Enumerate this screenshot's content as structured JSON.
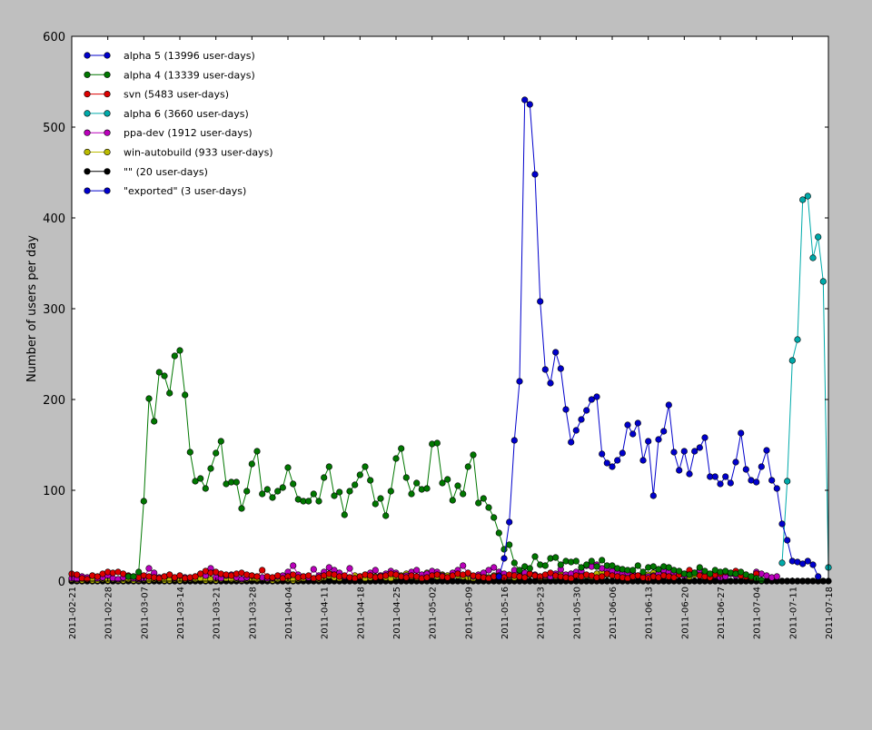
{
  "chart_data": {
    "type": "line",
    "title": "",
    "xlabel": "",
    "ylabel": "Number of users per day",
    "ylim": [
      0,
      600
    ],
    "yticks": [
      0,
      100,
      200,
      300,
      400,
      500,
      600
    ],
    "xlim": [
      "2011-02-21",
      "2011-07-18"
    ],
    "xticks": [
      "2011-02-21",
      "2011-02-28",
      "2011-03-07",
      "2011-03-14",
      "2011-03-21",
      "2011-03-28",
      "2011-04-04",
      "2011-04-11",
      "2011-04-18",
      "2011-04-25",
      "2011-05-02",
      "2011-05-09",
      "2011-05-16",
      "2011-05-23",
      "2011-05-30",
      "2011-06-06",
      "2011-06-13",
      "2011-06-20",
      "2011-06-27",
      "2011-07-04",
      "2011-07-11",
      "2011-07-18"
    ],
    "grid": false,
    "legend_position": "top-left",
    "series": [
      {
        "name": "alpha 5 (13996 user-days)",
        "color": "#0000cc",
        "start": "2011-05-15",
        "values": [
          5,
          25,
          65,
          155,
          220,
          530,
          525,
          448,
          308,
          233,
          218,
          252,
          234,
          189,
          153,
          166,
          178,
          188,
          200,
          203,
          140,
          130,
          126,
          133,
          141,
          172,
          162,
          174,
          133,
          154,
          94,
          156,
          165,
          194,
          142,
          122,
          143,
          118,
          143,
          147,
          158,
          115,
          115,
          107,
          115,
          108,
          131,
          163,
          123,
          111,
          109,
          126,
          144,
          111,
          102,
          63,
          45,
          22,
          21,
          19,
          22,
          18,
          5
        ]
      },
      {
        "name": "alpha 4 (13339 user-days)",
        "color": "#007700",
        "start": "2011-03-04",
        "values": [
          5,
          5,
          10,
          88,
          201,
          176,
          230,
          226,
          207,
          248,
          254,
          205,
          142,
          110,
          113,
          102,
          124,
          141,
          154,
          107,
          109,
          109,
          80,
          99,
          129,
          143,
          96,
          101,
          92,
          99,
          103,
          125,
          107,
          90,
          88,
          88,
          96,
          88,
          114,
          126,
          94,
          98,
          73,
          99,
          106,
          117,
          126,
          111,
          85,
          91,
          72,
          99,
          135,
          146,
          114,
          96,
          108,
          101,
          102,
          151,
          152,
          108,
          112,
          89,
          105,
          96,
          126,
          139,
          86,
          91,
          81,
          70,
          53,
          35,
          40,
          20,
          12,
          16,
          14,
          27,
          18,
          17,
          25,
          26,
          18,
          22,
          21,
          22,
          15,
          18,
          22,
          16,
          23,
          17,
          17,
          14,
          13,
          12,
          12,
          17,
          10,
          15,
          16,
          13,
          16,
          15,
          12,
          11,
          8,
          7,
          9,
          15,
          11,
          8,
          12,
          10,
          11,
          9,
          8,
          10,
          7,
          5,
          3,
          1
        ]
      },
      {
        "name": "svn (5483 user-days)",
        "color": "#dd0000",
        "start": "2011-02-21",
        "series_pattern": "svn",
        "values": [
          8,
          7,
          3,
          2,
          6,
          5,
          8,
          10,
          9,
          10,
          8,
          6,
          5,
          4,
          6,
          5,
          4,
          3,
          5,
          7,
          4,
          6,
          3,
          4,
          5,
          8,
          11,
          9,
          10,
          8,
          7,
          6,
          8,
          9,
          7,
          6,
          5,
          12,
          5,
          4,
          6,
          3,
          5,
          7,
          4,
          5,
          6,
          3,
          4,
          6,
          8,
          7,
          5,
          6,
          4,
          3,
          5,
          7,
          6,
          4,
          5,
          6,
          8,
          7,
          5,
          4,
          6,
          5,
          3,
          4,
          6,
          7,
          5,
          4,
          6,
          8,
          7,
          9,
          6,
          5,
          4,
          3,
          5,
          6,
          4,
          7,
          6,
          5,
          4,
          8,
          6,
          5,
          7,
          9,
          6,
          5,
          4,
          3,
          6,
          5,
          7,
          6,
          4,
          5,
          8,
          6,
          5,
          4,
          3,
          5,
          6,
          4,
          3,
          5,
          4,
          6,
          5,
          4,
          7,
          8,
          12,
          9,
          6,
          5,
          4,
          7,
          8,
          10,
          9,
          11,
          6,
          5,
          4,
          8
        ]
      },
      {
        "name": "alpha 6 (3660 user-days)",
        "color": "#00aaaa",
        "start": "2011-07-09",
        "values": [
          20,
          110,
          243,
          266,
          420,
          424,
          356,
          379,
          330,
          15
        ]
      },
      {
        "name": "ppa-dev (1912 user-days)",
        "color": "#bb00bb",
        "start": "2011-02-21",
        "values": [
          3,
          2,
          5,
          4,
          6,
          3,
          4,
          6,
          3,
          2,
          4,
          5,
          3,
          2,
          3,
          14,
          9,
          4,
          5,
          7,
          3,
          6,
          4,
          3,
          5,
          8,
          6,
          14,
          4,
          3,
          6,
          7,
          4,
          2,
          4,
          6,
          5,
          4,
          3,
          3,
          5,
          6,
          10,
          17,
          7,
          5,
          4,
          13,
          6,
          10,
          15,
          12,
          9,
          5,
          14,
          3,
          5,
          7,
          9,
          12,
          6,
          8,
          11,
          9,
          5,
          6,
          10,
          12,
          7,
          8,
          11,
          10,
          6,
          4,
          9,
          12,
          17,
          8,
          5,
          7,
          9,
          12,
          15,
          10,
          8,
          6,
          12,
          11,
          9,
          8,
          7,
          5,
          6,
          5,
          8,
          13,
          7,
          8,
          10,
          11,
          17,
          16,
          18,
          14,
          12,
          11,
          9,
          8,
          9,
          7,
          6,
          4,
          5,
          6,
          8,
          12,
          10,
          9,
          7,
          6,
          8,
          9,
          12,
          7,
          5,
          6,
          4,
          5,
          8,
          6,
          9,
          7,
          5,
          10,
          8,
          6,
          4,
          5
        ]
      },
      {
        "name": "win-autobuild (933 user-days)",
        "color": "#bbbb00",
        "start": "2011-02-21",
        "values": [
          2,
          1,
          1,
          2,
          1,
          1,
          2,
          1,
          2,
          1,
          1,
          2,
          1,
          1,
          2,
          1,
          2,
          2,
          1,
          1,
          2,
          1,
          2,
          2,
          2,
          3,
          1,
          2,
          1,
          2,
          3,
          2,
          2,
          1,
          2,
          3,
          2,
          3,
          2,
          1,
          2,
          3,
          2,
          1,
          2,
          3,
          4,
          3,
          2,
          4,
          6,
          4,
          3,
          5,
          4,
          6,
          5,
          3,
          4,
          5,
          6,
          4,
          3,
          5,
          6,
          8,
          5,
          4,
          6,
          9,
          8,
          5,
          7,
          6,
          8,
          6,
          5,
          4,
          3,
          5,
          7,
          4,
          6,
          5,
          7,
          5,
          4,
          6,
          5,
          7,
          6,
          4,
          5,
          6,
          5,
          7,
          6,
          8,
          9,
          7,
          6,
          5,
          8,
          10,
          7,
          9,
          8,
          6,
          7,
          8,
          6,
          5,
          7,
          9,
          8,
          6,
          7,
          9,
          8,
          6,
          5,
          7,
          8,
          9
        ]
      },
      {
        "name": "\"\" (20 user-days)",
        "color": "#000000",
        "start": "2011-02-21",
        "values": [
          0,
          0,
          0,
          0,
          0,
          0,
          0,
          0,
          0,
          0,
          0,
          0,
          0,
          0,
          0,
          0,
          0,
          0,
          0,
          0,
          0,
          0,
          0,
          0,
          0,
          0,
          0,
          0,
          0,
          0,
          0,
          0,
          0,
          0,
          0,
          0,
          0,
          0,
          0,
          0,
          0,
          0,
          0,
          0,
          0,
          0,
          0,
          0,
          0,
          0,
          0,
          0,
          0,
          0,
          0,
          0,
          0,
          0,
          0,
          0,
          0,
          0,
          0,
          0,
          0,
          0,
          0,
          0,
          0,
          0,
          0,
          0,
          0,
          0,
          0,
          0,
          0,
          0,
          0,
          0,
          0,
          0,
          0,
          0,
          0,
          0,
          0,
          0,
          0,
          0,
          0,
          0,
          0,
          0,
          0,
          0,
          0,
          0,
          0,
          0,
          0,
          0,
          0,
          0,
          0,
          0,
          0,
          0,
          0,
          0,
          0,
          0,
          0,
          0,
          0,
          0,
          0,
          0,
          0,
          0,
          0,
          0,
          0,
          0,
          0,
          0,
          0,
          0,
          0,
          0,
          0,
          0,
          0,
          0,
          0,
          0,
          0,
          0,
          0,
          0,
          0,
          0,
          0,
          0,
          0,
          0,
          0,
          0
        ]
      },
      {
        "name": "\"exported\" (3 user-days)",
        "color": "#0000cc",
        "start": "2011-02-21",
        "values": [
          0,
          0,
          0,
          0,
          0,
          0,
          0,
          0,
          0,
          0,
          0,
          0,
          0,
          0,
          0,
          0,
          0,
          0,
          0,
          0,
          0,
          0,
          0,
          0,
          0,
          0,
          0,
          0,
          0,
          0,
          0,
          0,
          0,
          0,
          0,
          0,
          0,
          0,
          0,
          0,
          0,
          0,
          0,
          0,
          0,
          0,
          0,
          0,
          0,
          0,
          0,
          0,
          0,
          0,
          0,
          0,
          0,
          0,
          0,
          0,
          0,
          0,
          0,
          0,
          0,
          0,
          0,
          0,
          0,
          0,
          0,
          0,
          0,
          0,
          0,
          0,
          0,
          0,
          0,
          0,
          0,
          0,
          0,
          0,
          0,
          0,
          0,
          0,
          0,
          0,
          0,
          0,
          0,
          0,
          0,
          0,
          0,
          0,
          0,
          0,
          0,
          0,
          0,
          0,
          0,
          0,
          0,
          0,
          0,
          0,
          0,
          0,
          0,
          0,
          0,
          0,
          0,
          0,
          0,
          0,
          0,
          0,
          0,
          0,
          0,
          0,
          0,
          0,
          0,
          0,
          0,
          0,
          0,
          0,
          0,
          0,
          0,
          0,
          0,
          0,
          0,
          0,
          0,
          0,
          0,
          0,
          0
        ]
      }
    ]
  }
}
